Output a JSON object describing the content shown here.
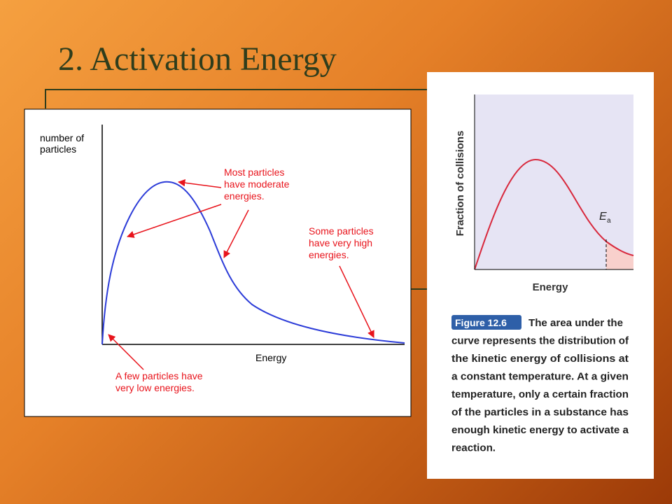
{
  "slide": {
    "title": "2. Activation Energy"
  },
  "left_figure": {
    "y_axis_label": [
      "number of",
      "particles"
    ],
    "x_axis_label": "Energy",
    "annotations": [
      [
        "Most particles",
        "have moderate",
        "energies."
      ],
      [
        "Some particles",
        "have very high",
        "energies."
      ],
      [
        "A few particles have",
        "very low energies."
      ]
    ]
  },
  "right_figure": {
    "y_axis_label": "Fraction of collisions",
    "x_axis_label": "Energy",
    "threshold_label": "E",
    "threshold_subscript": "a",
    "figure_number": "Figure 12.6",
    "caption": [
      "The area under the",
      "curve represents the distribution of",
      "the kinetic energy of collisions at",
      "a constant temperature. At a given",
      "temperature, only a certain fraction",
      "of the particles in a substance has",
      "enough kinetic energy to activate a",
      "reaction."
    ]
  }
}
